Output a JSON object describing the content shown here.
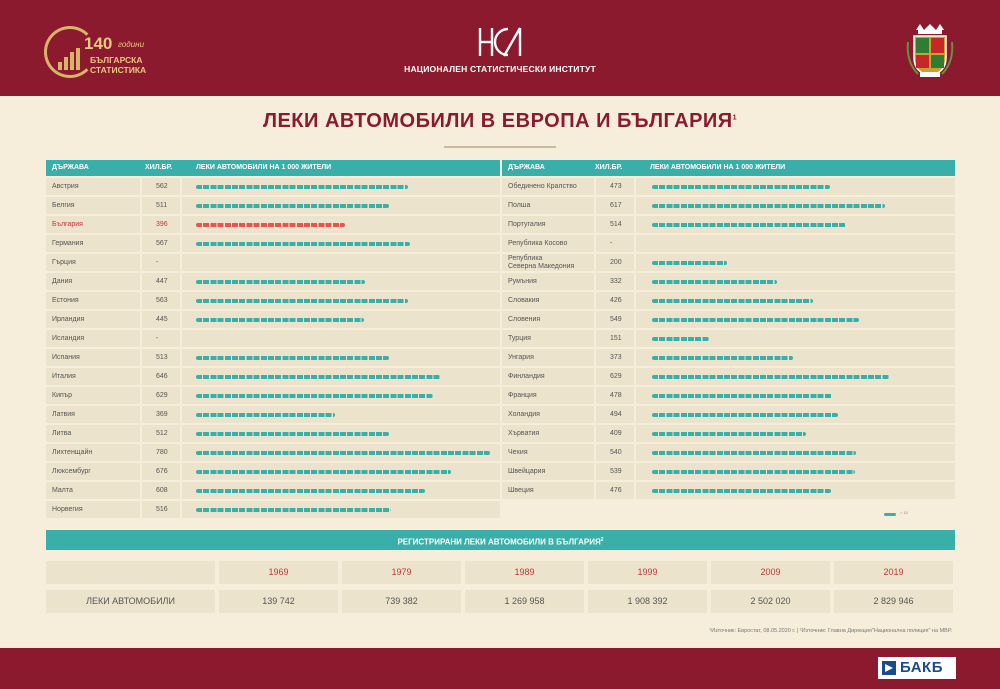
{
  "header": {
    "anniv_number": "140",
    "anniv_years": "години",
    "anniv_line1": "БЪЛГАРСКА",
    "anniv_line2": "СТАТИСТИКА",
    "institute_name": "НАЦИОНАЛЕН СТАТИСТИЧЕСКИ ИНСТИТУТ",
    "logo_text": "НСИ"
  },
  "title": "ЛЕКИ АВТОМОБИЛИ В ЕВРОПА И БЪЛГАРИЯ",
  "title_note": "1",
  "table_headers": {
    "country": "ДЪРЖАВА",
    "thousand": "ХИЛ.БР.",
    "per_1000": "ЛЕКИ АВТОМОБИЛИ НА 1 000 ЖИТЕЛИ"
  },
  "chart_data": {
    "type": "bar",
    "title": "ЛЕКИ АВТОМОБИЛИ В ЕВРОПА И БЪЛГАРИЯ",
    "ylabel": "ЛЕКИ АВТОМОБИЛИ НА 1 000 ЖИТЕЛИ",
    "highlight_color": "#e5574e",
    "bar_color": "#3aafa9",
    "left": [
      {
        "country": "Австрия",
        "value": 562
      },
      {
        "country": "Белгия",
        "value": 511
      },
      {
        "country": "България",
        "value": 396,
        "highlight": true
      },
      {
        "country": "Германия",
        "value": 567
      },
      {
        "country": "Гърция",
        "value": null,
        "display": "-"
      },
      {
        "country": "Дания",
        "value": 447
      },
      {
        "country": "Естония",
        "value": 563
      },
      {
        "country": "Ирландия",
        "value": 445
      },
      {
        "country": "Исландия",
        "value": null,
        "display": "-"
      },
      {
        "country": "Испания",
        "value": 513
      },
      {
        "country": "Италия",
        "value": 646
      },
      {
        "country": "Кипър",
        "value": 629
      },
      {
        "country": "Латвия",
        "value": 369
      },
      {
        "country": "Литва",
        "value": 512
      },
      {
        "country": "Лихтенщайн",
        "value": 780
      },
      {
        "country": "Люксембург",
        "value": 676
      },
      {
        "country": "Малта",
        "value": 608
      },
      {
        "country": "Норвегия",
        "value": 516
      }
    ],
    "right": [
      {
        "country": "Обединено Кралство",
        "value": 473
      },
      {
        "country": "Полша",
        "value": 617
      },
      {
        "country": "Португалия",
        "value": 514
      },
      {
        "country": "Република Косово",
        "value": null,
        "display": "-"
      },
      {
        "country": "Република\nСеверна Македония",
        "value": 200
      },
      {
        "country": "Румъния",
        "value": 332
      },
      {
        "country": "Словакия",
        "value": 426
      },
      {
        "country": "Словения",
        "value": 549
      },
      {
        "country": "Турция",
        "value": 151
      },
      {
        "country": "Унгария",
        "value": 373
      },
      {
        "country": "Финландия",
        "value": 629
      },
      {
        "country": "Франция",
        "value": 478
      },
      {
        "country": "Холандия",
        "value": 494
      },
      {
        "country": "Хърватия",
        "value": 409
      },
      {
        "country": "Чехия",
        "value": 540
      },
      {
        "country": "Швейцария",
        "value": 539
      },
      {
        "country": "Швеция",
        "value": 476
      }
    ],
    "bulgaria_registered": {
      "label": "ЛЕКИ АВТОМОБИЛИ",
      "years": [
        "1969",
        "1979",
        "1989",
        "1999",
        "2009",
        "2019"
      ],
      "values": [
        "139 742",
        "739 382",
        "1 269 958",
        "1 908 392",
        "2 502 020",
        "2 829 946"
      ]
    }
  },
  "legend_text": "= 10",
  "registered_title": "РЕГИСТРИРАНИ ЛЕКИ АВТОМОБИЛИ В БЪЛГАРИЯ",
  "registered_note": "2",
  "footnote": "¹Източник: Евростат, 08.05.2020 г.  |  ²Източник: Главна Дирекция\"Национална полиция\" на МВР.",
  "bottom_logo": "БАКБ"
}
